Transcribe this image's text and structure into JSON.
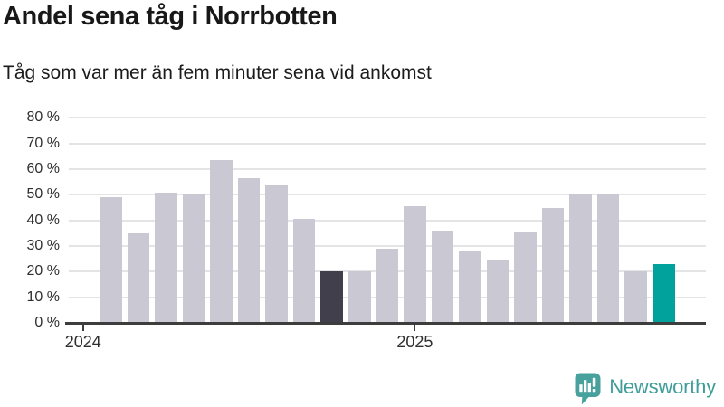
{
  "header": {
    "title": "Andel sena tåg i Norrbotten",
    "subtitle": "Tåg som var mer än fem minuter sena vid ankomst"
  },
  "chart_data": {
    "type": "bar",
    "title": "Andel sena tåg i Norrbotten",
    "subtitle": "Tåg som var mer än fem minuter sena vid ankomst",
    "unit": "%",
    "ylim": [
      0,
      80
    ],
    "grid": true,
    "legend": "none",
    "values": [
      49,
      35,
      51,
      50.5,
      63.5,
      56.5,
      54,
      40.5,
      20,
      20,
      29,
      45.5,
      36,
      28,
      24.5,
      35.5,
      45,
      50,
      50.5,
      20,
      23
    ],
    "highlight_dark_index": 8,
    "highlight_teal_index": 20,
    "y_ticks": [
      {
        "label": "80 %",
        "value": 80
      },
      {
        "label": "70 %",
        "value": 70
      },
      {
        "label": "60 %",
        "value": 60
      },
      {
        "label": "50 %",
        "value": 50
      },
      {
        "label": "40 %",
        "value": 40
      },
      {
        "label": "30 %",
        "value": 30
      },
      {
        "label": "20 %",
        "value": 20
      },
      {
        "label": "10 %",
        "value": 10
      },
      {
        "label": "0 %",
        "value": 0
      }
    ],
    "x_ticks": [
      {
        "label": "2024",
        "slot": -1
      },
      {
        "label": "2025",
        "slot": 11
      }
    ]
  },
  "colors": {
    "bar_default": "#c9c8d3",
    "bar_dark": "#413f4b",
    "bar_teal": "#00a29b",
    "gridline": "#e4e4e6",
    "axis": "#3d3d3d",
    "title_text": "#181818",
    "tick_text": "#2e2e2e",
    "logo_teal": "#47a29d",
    "logo_text_teal": "#3f9e99"
  },
  "footer": {
    "logo_icon": "newsworthy-speech-bubble-barchart-icon",
    "logo_text": "Newsworthy"
  }
}
